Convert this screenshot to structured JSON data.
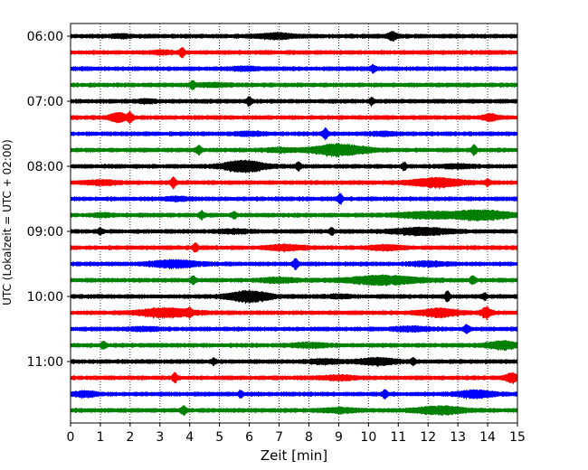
{
  "chart_data": {
    "type": "line",
    "title": "",
    "xlabel": "Zeit  [min]",
    "ylabel": "UTC (Lokalzeit = UTC + 02:00)",
    "xlim": [
      0,
      15
    ],
    "x_ticks": [
      0,
      1,
      2,
      3,
      4,
      5,
      6,
      7,
      8,
      9,
      10,
      11,
      12,
      13,
      14,
      15
    ],
    "x_tick_labels": [
      "0",
      "1",
      "2",
      "3",
      "4",
      "5",
      "6",
      "7",
      "8",
      "9",
      "10",
      "11",
      "12",
      "13",
      "14",
      "15"
    ],
    "y_tick_labels": [
      "06:00",
      "07:00",
      "08:00",
      "09:00",
      "10:00",
      "11:00"
    ],
    "y_tick_rows": [
      0,
      4,
      8,
      12,
      16,
      20
    ],
    "row_count": 24,
    "row_interval_min": 15,
    "vertical_grid": "dotted",
    "colors": [
      "#000000",
      "#ff0000",
      "#0000ff",
      "#008000"
    ],
    "rows": [
      {
        "start": "06:00",
        "color": "#000000",
        "bursts": [
          [
            6.9,
            0.6,
            0.25
          ],
          [
            10.8,
            0.15,
            0.45
          ],
          [
            1.7,
            0.3,
            0.15
          ]
        ]
      },
      {
        "start": "06:15",
        "color": "#ff0000",
        "bursts": [
          [
            3.75,
            0.08,
            0.5
          ],
          [
            3.1,
            0.3,
            0.15
          ]
        ]
      },
      {
        "start": "06:30",
        "color": "#0000ff",
        "bursts": [
          [
            10.15,
            0.08,
            0.35
          ],
          [
            5.8,
            0.4,
            0.15
          ]
        ]
      },
      {
        "start": "06:45",
        "color": "#008000",
        "bursts": [
          [
            4.1,
            0.08,
            0.4
          ],
          [
            4.8,
            0.5,
            0.15
          ]
        ]
      },
      {
        "start": "07:00",
        "color": "#000000",
        "bursts": [
          [
            6.0,
            0.08,
            0.45
          ],
          [
            10.1,
            0.08,
            0.35
          ],
          [
            2.5,
            0.3,
            0.15
          ]
        ]
      },
      {
        "start": "07:15",
        "color": "#ff0000",
        "bursts": [
          [
            1.6,
            0.3,
            0.45
          ],
          [
            2.0,
            0.08,
            0.5
          ],
          [
            14.1,
            0.25,
            0.3
          ]
        ]
      },
      {
        "start": "07:30",
        "color": "#0000ff",
        "bursts": [
          [
            8.55,
            0.08,
            0.6
          ],
          [
            6.0,
            0.5,
            0.15
          ],
          [
            10.5,
            0.4,
            0.15
          ]
        ]
      },
      {
        "start": "07:45",
        "color": "#008000",
        "bursts": [
          [
            9.0,
            0.9,
            0.6
          ],
          [
            4.3,
            0.08,
            0.4
          ],
          [
            13.55,
            0.08,
            0.55
          ],
          [
            7.0,
            0.5,
            0.15
          ]
        ]
      },
      {
        "start": "08:00",
        "color": "#000000",
        "bursts": [
          [
            5.8,
            0.7,
            0.6
          ],
          [
            7.65,
            0.08,
            0.45
          ],
          [
            11.2,
            0.08,
            0.35
          ],
          [
            13.0,
            0.5,
            0.15
          ]
        ]
      },
      {
        "start": "08:15",
        "color": "#ff0000",
        "bursts": [
          [
            3.45,
            0.08,
            0.6
          ],
          [
            12.3,
            0.8,
            0.45
          ],
          [
            1.0,
            0.5,
            0.2
          ],
          [
            14.0,
            0.08,
            0.3
          ]
        ]
      },
      {
        "start": "08:30",
        "color": "#0000ff",
        "bursts": [
          [
            9.05,
            0.08,
            0.55
          ],
          [
            3.6,
            0.4,
            0.15
          ]
        ]
      },
      {
        "start": "08:45",
        "color": "#008000",
        "bursts": [
          [
            13.8,
            0.9,
            0.5
          ],
          [
            12.0,
            1.0,
            0.3
          ],
          [
            4.4,
            0.08,
            0.4
          ],
          [
            5.5,
            0.08,
            0.3
          ],
          [
            1.1,
            0.3,
            0.15
          ]
        ]
      },
      {
        "start": "09:00",
        "color": "#000000",
        "bursts": [
          [
            11.8,
            0.9,
            0.35
          ],
          [
            8.75,
            0.08,
            0.35
          ],
          [
            1.0,
            0.08,
            0.3
          ],
          [
            5.5,
            0.5,
            0.15
          ]
        ]
      },
      {
        "start": "09:15",
        "color": "#ff0000",
        "bursts": [
          [
            4.2,
            0.08,
            0.5
          ],
          [
            7.2,
            0.6,
            0.25
          ],
          [
            10.6,
            0.5,
            0.2
          ]
        ]
      },
      {
        "start": "09:30",
        "color": "#0000ff",
        "bursts": [
          [
            3.5,
            0.8,
            0.35
          ],
          [
            7.55,
            0.08,
            0.55
          ],
          [
            12.0,
            0.6,
            0.2
          ]
        ]
      },
      {
        "start": "09:45",
        "color": "#008000",
        "bursts": [
          [
            10.5,
            1.2,
            0.45
          ],
          [
            4.1,
            0.08,
            0.45
          ],
          [
            13.5,
            0.08,
            0.45
          ],
          [
            7.0,
            0.6,
            0.2
          ]
        ]
      },
      {
        "start": "10:00",
        "color": "#000000",
        "bursts": [
          [
            6.0,
            0.7,
            0.55
          ],
          [
            12.65,
            0.08,
            0.55
          ],
          [
            13.9,
            0.08,
            0.3
          ],
          [
            9.0,
            0.4,
            0.15
          ]
        ]
      },
      {
        "start": "10:15",
        "color": "#ff0000",
        "bursts": [
          [
            3.2,
            0.9,
            0.45
          ],
          [
            12.4,
            0.6,
            0.4
          ],
          [
            13.95,
            0.15,
            0.6
          ],
          [
            4.0,
            0.08,
            0.35
          ]
        ]
      },
      {
        "start": "10:30",
        "color": "#0000ff",
        "bursts": [
          [
            13.3,
            0.08,
            0.45
          ],
          [
            11.5,
            0.6,
            0.2
          ],
          [
            2.5,
            0.5,
            0.15
          ]
        ]
      },
      {
        "start": "10:45",
        "color": "#008000",
        "bursts": [
          [
            14.5,
            0.5,
            0.4
          ],
          [
            1.1,
            0.08,
            0.35
          ],
          [
            8.0,
            0.6,
            0.2
          ]
        ]
      },
      {
        "start": "11:00",
        "color": "#000000",
        "bursts": [
          [
            10.3,
            0.6,
            0.35
          ],
          [
            11.5,
            0.08,
            0.3
          ],
          [
            4.8,
            0.08,
            0.3
          ],
          [
            8.5,
            0.5,
            0.2
          ]
        ]
      },
      {
        "start": "11:15",
        "color": "#ff0000",
        "bursts": [
          [
            3.5,
            0.08,
            0.55
          ],
          [
            14.8,
            0.2,
            0.45
          ],
          [
            9.0,
            0.6,
            0.2
          ]
        ]
      },
      {
        "start": "11:30",
        "color": "#0000ff",
        "bursts": [
          [
            13.6,
            0.6,
            0.35
          ],
          [
            10.55,
            0.08,
            0.45
          ],
          [
            0.5,
            0.4,
            0.25
          ],
          [
            5.7,
            0.08,
            0.3
          ]
        ]
      },
      {
        "start": "11:45",
        "color": "#008000",
        "bursts": [
          [
            12.4,
            0.8,
            0.4
          ],
          [
            3.8,
            0.08,
            0.45
          ],
          [
            9.0,
            0.6,
            0.2
          ]
        ]
      }
    ]
  }
}
